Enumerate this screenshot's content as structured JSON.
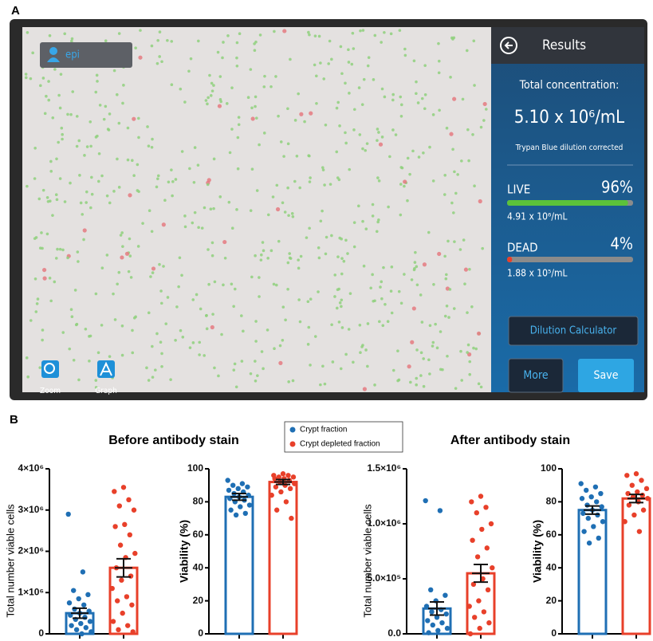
{
  "panel_labels": [
    "A",
    "B"
  ],
  "panel_a": {
    "user": "epi",
    "header": "Results",
    "total_label": "Total concentration:",
    "total_value": "5.10 x 10⁶/mL",
    "note": "Trypan Blue dilution corrected",
    "live": {
      "label": "LIVE",
      "percent": 96,
      "percent_label": "96%",
      "concentration": "4.91 x 10⁶/mL"
    },
    "dead": {
      "label": "DEAD",
      "percent": 4,
      "percent_label": "4%",
      "concentration": "1.88 x 10⁵/mL"
    },
    "buttons": [
      "Dilution Calculator",
      "More",
      "Save"
    ],
    "tools": [
      "Zoom",
      "Graph"
    ]
  },
  "panel_b": {
    "titles": [
      "Before antibody stain",
      "After antibody stain"
    ],
    "legend": [
      {
        "name": "Crypt fraction",
        "color": "#1f6fb4"
      },
      {
        "name": "Crypt depleted fraction",
        "color": "#e8402a"
      }
    ]
  },
  "chart_data": [
    {
      "type": "bar-scatter",
      "y_label": "Total number viable cells",
      "ylim": [
        0,
        4000000
      ],
      "yticks": [
        0,
        {
          "value": 1000000,
          "label": "1×10⁶"
        },
        {
          "value": 2000000,
          "label": "2×10⁶"
        },
        {
          "value": 3000000,
          "label": "3×10⁶"
        },
        {
          "value": 4000000,
          "label": "4×10⁶"
        }
      ],
      "series": [
        {
          "value": 500000,
          "error": 120000,
          "points": [
            2900000,
            1500000,
            1050000,
            950000,
            850000,
            750000,
            700000,
            600000,
            550000,
            500000,
            450000,
            400000,
            350000,
            300000,
            250000,
            200000,
            150000,
            100000,
            50000,
            0
          ]
        },
        {
          "value": 1600000,
          "error": 220000,
          "points": [
            3550000,
            3450000,
            3250000,
            3100000,
            3000000,
            2650000,
            2600000,
            2400000,
            2150000,
            1950000,
            1850000,
            1600000,
            1400000,
            1300000,
            1100000,
            900000,
            800000,
            700000,
            500000,
            300000,
            200000,
            100000,
            50000
          ]
        }
      ]
    },
    {
      "type": "bar-scatter",
      "y_label": "Viability (%)",
      "ylim": [
        0,
        100
      ],
      "yticks": [
        0,
        20,
        40,
        60,
        80,
        100
      ],
      "series": [
        {
          "value": 83,
          "error": 2,
          "points": [
            93,
            91,
            90,
            89,
            88,
            87,
            86,
            85,
            84,
            83,
            82,
            81,
            80,
            78,
            77,
            75,
            73,
            72
          ]
        },
        {
          "value": 92,
          "error": 1.5,
          "points": [
            97,
            96,
            96,
            95,
            95,
            94,
            94,
            93,
            92,
            91,
            90,
            89,
            88,
            86,
            84,
            80,
            75,
            70
          ]
        }
      ]
    },
    {
      "type": "bar-scatter",
      "y_label": "Total number viable cells",
      "ylim": [
        0,
        1500000
      ],
      "yticks": [
        {
          "value": 0,
          "label": "0.0"
        },
        {
          "value": 500000,
          "label": "5.0×10⁵"
        },
        {
          "value": 1000000,
          "label": "1.0×10⁶"
        },
        {
          "value": 1500000,
          "label": "1.5×10⁶"
        }
      ],
      "series": [
        {
          "value": 230000,
          "error": 60000,
          "points": [
            1210000,
            1120000,
            400000,
            350000,
            300000,
            250000,
            220000,
            200000,
            180000,
            150000,
            120000,
            100000,
            80000,
            50000,
            30000,
            10000
          ]
        },
        {
          "value": 550000,
          "error": 80000,
          "points": [
            1250000,
            1200000,
            1150000,
            1100000,
            1000000,
            950000,
            850000,
            780000,
            700000,
            600000,
            500000,
            450000,
            400000,
            300000,
            250000,
            200000,
            150000,
            100000,
            50000,
            0
          ]
        }
      ]
    },
    {
      "type": "bar-scatter",
      "y_label": "Viability (%)",
      "ylim": [
        0,
        100
      ],
      "yticks": [
        0,
        20,
        40,
        60,
        80,
        100
      ],
      "series": [
        {
          "value": 75,
          "error": 2.5,
          "points": [
            91,
            89,
            87,
            85,
            83,
            82,
            80,
            78,
            77,
            75,
            73,
            72,
            70,
            68,
            65,
            62,
            58,
            55
          ]
        },
        {
          "value": 82,
          "error": 2.5,
          "points": [
            97,
            96,
            93,
            90,
            88,
            86,
            85,
            84,
            83,
            82,
            80,
            78,
            75,
            72,
            68,
            62
          ]
        }
      ]
    }
  ]
}
